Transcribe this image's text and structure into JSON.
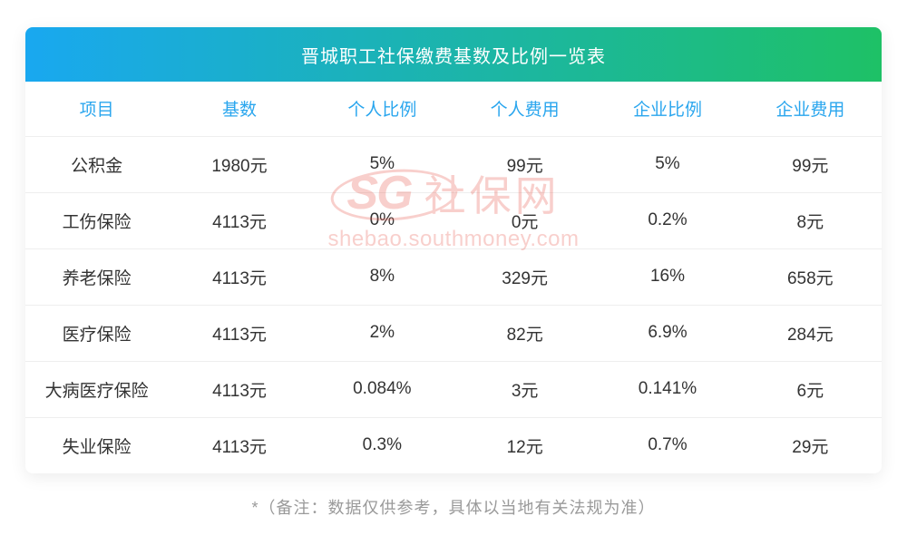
{
  "title": "晋城职工社保缴费基数及比例一览表",
  "columns": [
    "项目",
    "基数",
    "个人比例",
    "个人费用",
    "企业比例",
    "企业费用"
  ],
  "rows": [
    [
      "公积金",
      "1980元",
      "5%",
      "99元",
      "5%",
      "99元"
    ],
    [
      "工伤保险",
      "4113元",
      "0%",
      "0元",
      "0.2%",
      "8元"
    ],
    [
      "养老保险",
      "4113元",
      "8%",
      "329元",
      "16%",
      "658元"
    ],
    [
      "医疗保险",
      "4113元",
      "2%",
      "82元",
      "6.9%",
      "284元"
    ],
    [
      "大病医疗保险",
      "4113元",
      "0.084%",
      "3元",
      "0.141%",
      "6元"
    ],
    [
      "失业保险",
      "4113元",
      "0.3%",
      "12元",
      "0.7%",
      "29元"
    ]
  ],
  "footnote": "*（备注：数据仅供参考，具体以当地有关法规为准）",
  "watermark": {
    "logo": "SG",
    "cn": "社保网",
    "url": "shebao.southmoney.com",
    "color": "#e9564a"
  },
  "style": {
    "title_gradient_start": "#19a8f0",
    "title_gradient_end": "#1ec166",
    "title_text_color": "#ffffff",
    "header_text_color": "#2aa6ee",
    "body_text_color": "#333333",
    "row_border_color": "#eeeeee",
    "footnote_color": "#9a9a9a",
    "background_color": "#ffffff",
    "title_fontsize": 20,
    "header_fontsize": 19,
    "cell_fontsize": 19,
    "footnote_fontsize": 18
  }
}
